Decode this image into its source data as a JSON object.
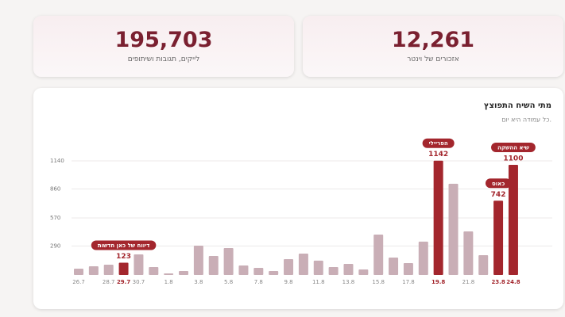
{
  "cards": [
    {
      "value": "195,703",
      "label": "לייקים, תגובות ושיתופים"
    },
    {
      "value": "12,261",
      "label": "אזכורים של וינטר"
    }
  ],
  "chart_data": {
    "type": "bar",
    "title": "מתי השיח התפוצץ",
    "subtitle": "כל עמודה היא יום.",
    "categories": [
      "26.7",
      null,
      "28.7",
      "29.7",
      "30.7",
      null,
      "1.8",
      null,
      "3.8",
      null,
      "5.8",
      null,
      "7.8",
      null,
      "9.8",
      null,
      "11.8",
      null,
      "13.8",
      null,
      "15.8",
      null,
      "17.8",
      null,
      "19.8",
      null,
      "21.8",
      null,
      "23.8",
      "24.8"
    ],
    "values": [
      63,
      87,
      103,
      123,
      206,
      79,
      16,
      40,
      293,
      190,
      269,
      95,
      71,
      40,
      158,
      214,
      143,
      79,
      111,
      55,
      404,
      174,
      119,
      333,
      1142,
      911,
      435,
      198,
      742,
      1100
    ],
    "color": "#c9aeb6",
    "highlight_color": "#a3262d",
    "annotations": [
      {
        "x": "29.7",
        "text": "דיווח של כאן חדשות"
      },
      {
        "x": "19.8",
        "text": "הפריילי"
      },
      {
        "x": "23.8",
        "text": "כאוס"
      },
      {
        "x": "24.8",
        "text": "שיא ההשקה"
      }
    ],
    "ylim": [
      0,
      1140
    ],
    "yticks": [
      290,
      570,
      860,
      1140
    ],
    "grid": true
  }
}
